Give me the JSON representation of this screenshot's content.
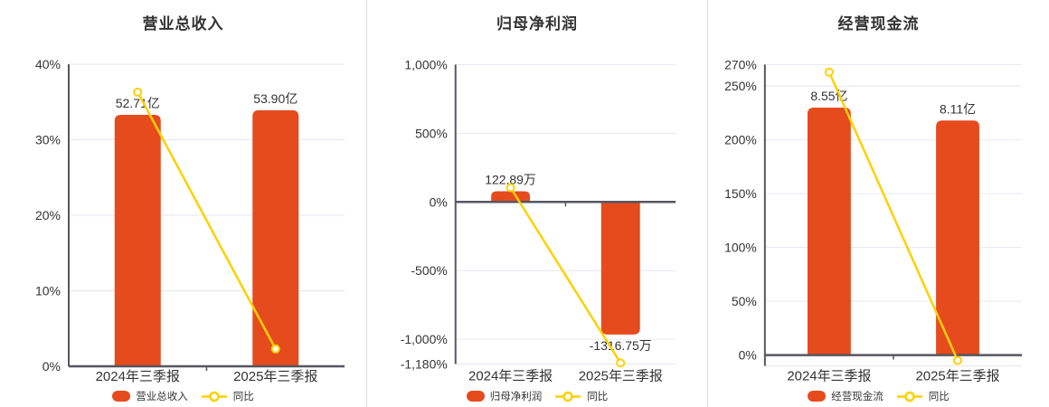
{
  "colors": {
    "bar": "#e64b1e",
    "line": "#fdd100",
    "grid": "#e6e6f0",
    "axis": "#55565f",
    "text": "#333333"
  },
  "chart_data": [
    {
      "type": "bar",
      "title": "营业总收入",
      "categories": [
        "2024年三季报",
        "2025年三季报"
      ],
      "bars": {
        "name": "营业总收入",
        "labels": [
          "52.71亿",
          "53.90亿"
        ],
        "plotted_axis_pct": [
          33.3,
          33.9
        ]
      },
      "line": {
        "name": "同比",
        "values_pct": [
          36.3,
          2.3
        ]
      },
      "ylim": [
        0,
        40
      ],
      "y_ticks": [
        {
          "value": 40,
          "label": "40%"
        },
        {
          "value": 30,
          "label": "30%"
        },
        {
          "value": 20,
          "label": "20%"
        },
        {
          "value": 10,
          "label": "10%"
        },
        {
          "value": 0,
          "label": "0%"
        }
      ]
    },
    {
      "type": "bar",
      "title": "归母净利润",
      "categories": [
        "2024年三季报",
        "2025年三季报"
      ],
      "bars": {
        "name": "归母净利润",
        "labels": [
          "122.89万",
          "-1316.75万"
        ],
        "plotted_axis_pct": [
          78,
          -965
        ]
      },
      "line": {
        "name": "同比",
        "values_pct": [
          104,
          -1172
        ]
      },
      "ylim": [
        -1180,
        1000
      ],
      "y_ticks": [
        {
          "value": 1000,
          "label": "1,000%"
        },
        {
          "value": 500,
          "label": "500%"
        },
        {
          "value": 0,
          "label": "0%"
        },
        {
          "value": -500,
          "label": "-500%"
        },
        {
          "value": -1000,
          "label": "-1,000%"
        },
        {
          "value": -1180,
          "label": "-1,180%"
        }
      ]
    },
    {
      "type": "bar",
      "title": "经营现金流",
      "categories": [
        "2024年三季报",
        "2025年三季报"
      ],
      "bars": {
        "name": "经营现金流",
        "labels": [
          "8.55亿",
          "8.11亿"
        ],
        "plotted_axis_pct": [
          230,
          218
        ]
      },
      "line": {
        "name": "同比",
        "values_pct": [
          263,
          -5
        ]
      },
      "ylim": [
        -10,
        270
      ],
      "y_ticks": [
        {
          "value": 270,
          "label": "270%"
        },
        {
          "value": 250,
          "label": "250%"
        },
        {
          "value": 200,
          "label": "200%"
        },
        {
          "value": 150,
          "label": "150%"
        },
        {
          "value": 100,
          "label": "100%"
        },
        {
          "value": 50,
          "label": "50%"
        },
        {
          "value": 0,
          "label": "0%"
        },
        {
          "value": -10,
          "label": ""
        }
      ]
    }
  ]
}
